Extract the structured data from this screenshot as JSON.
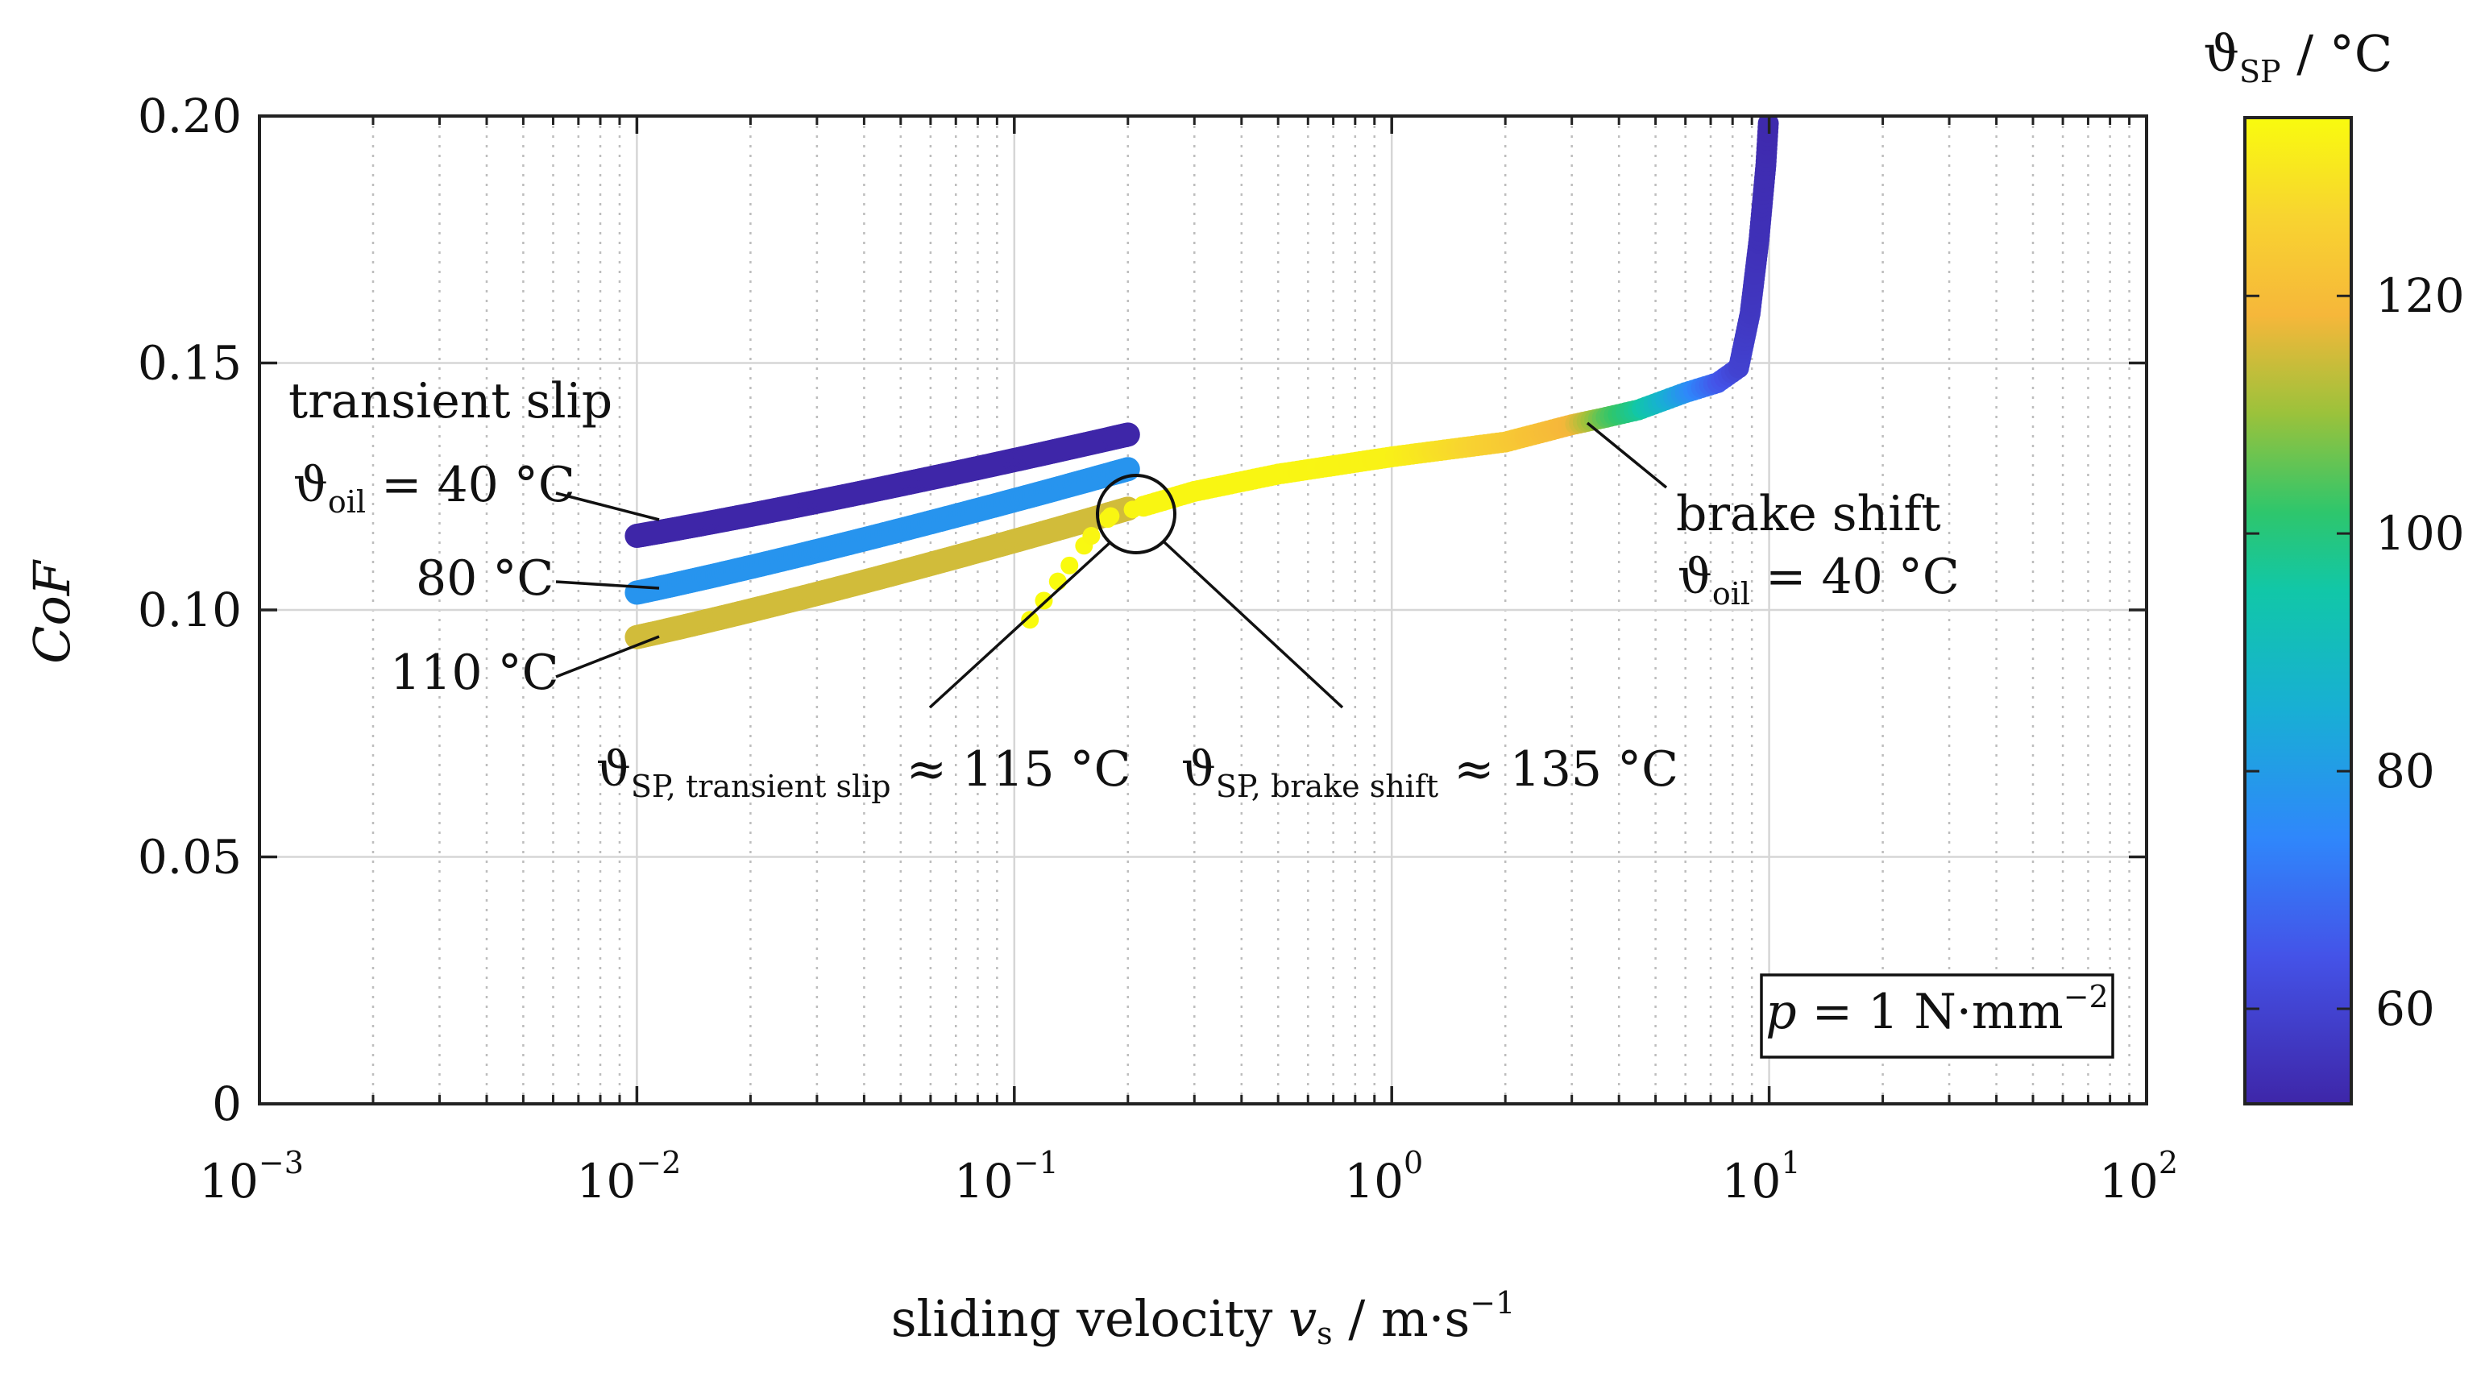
{
  "chart_data": {
    "type": "scatter",
    "x_scale": "log",
    "xlim": [
      0.001,
      100
    ],
    "ylim": [
      0,
      0.2
    ],
    "x_ticks": [
      {
        "base": "10",
        "exp": "−3",
        "value": 0.001
      },
      {
        "base": "10",
        "exp": "−2",
        "value": 0.01
      },
      {
        "base": "10",
        "exp": "−1",
        "value": 0.1
      },
      {
        "base": "10",
        "exp": "0",
        "value": 1
      },
      {
        "base": "10",
        "exp": "1",
        "value": 10
      },
      {
        "base": "10",
        "exp": "2",
        "value": 100
      }
    ],
    "y_ticks": [
      {
        "label": "0",
        "value": 0
      },
      {
        "label": "0.05",
        "value": 0.05
      },
      {
        "label": "0.10",
        "value": 0.1
      },
      {
        "label": "0.15",
        "value": 0.15
      },
      {
        "label": "0.20",
        "value": 0.2
      }
    ],
    "xlabel": {
      "main": "sliding velocity ",
      "var": "v",
      "sub": "s",
      "unit": " / m·s",
      "exp": "−1"
    },
    "ylabel": "CoF",
    "grid": true,
    "colorbar": {
      "label_symbol": "ϑ",
      "label_sub": "SP",
      "label_unit": " / °C",
      "range": [
        52,
        135
      ],
      "ticks": [
        {
          "label": "60",
          "value": 60
        },
        {
          "label": "80",
          "value": 80
        },
        {
          "label": "100",
          "value": 100
        },
        {
          "label": "120",
          "value": 120
        }
      ],
      "stops": [
        {
          "t": 0.0,
          "color": "#3e26a8"
        },
        {
          "t": 0.15,
          "color": "#4453e8"
        },
        {
          "t": 0.27,
          "color": "#2f87fb"
        },
        {
          "t": 0.4,
          "color": "#18afd4"
        },
        {
          "t": 0.52,
          "color": "#11c7a8"
        },
        {
          "t": 0.6,
          "color": "#2ec66c"
        },
        {
          "t": 0.7,
          "color": "#9bc23b"
        },
        {
          "t": 0.8,
          "color": "#f6b73a"
        },
        {
          "t": 0.9,
          "color": "#f8d430"
        },
        {
          "t": 1.0,
          "color": "#f9fb0e"
        }
      ]
    },
    "series": [
      {
        "name": "transient slip ϑoil = 40 °C",
        "x_range": [
          0.01,
          0.2
        ],
        "y_range": [
          0.115,
          0.1355
        ],
        "temp_c": 52
      },
      {
        "name": "transient slip 80 °C",
        "x_range": [
          0.01,
          0.2
        ],
        "y_range": [
          0.1035,
          0.1285
        ],
        "temp_c": 78
      },
      {
        "name": "transient slip 110 °C",
        "x_range": [
          0.01,
          0.2
        ],
        "y_range": [
          0.0945,
          0.1205
        ],
        "temp_c": 115
      },
      {
        "name": "brake shift ϑoil = 40 °C",
        "points": [
          {
            "x": 0.11,
            "y": 0.098,
            "t": 135
          },
          {
            "x": 0.14,
            "y": 0.109,
            "t": 135
          },
          {
            "x": 0.16,
            "y": 0.115,
            "t": 134
          },
          {
            "x": 0.18,
            "y": 0.119,
            "t": 134
          },
          {
            "x": 0.22,
            "y": 0.121,
            "t": 134
          },
          {
            "x": 0.3,
            "y": 0.124,
            "t": 134
          },
          {
            "x": 0.5,
            "y": 0.1275,
            "t": 134
          },
          {
            "x": 1.0,
            "y": 0.131,
            "t": 133
          },
          {
            "x": 2.0,
            "y": 0.134,
            "t": 124
          },
          {
            "x": 3.0,
            "y": 0.1375,
            "t": 118
          },
          {
            "x": 3.7,
            "y": 0.139,
            "t": 105
          },
          {
            "x": 4.5,
            "y": 0.1405,
            "t": 97
          },
          {
            "x": 6.0,
            "y": 0.144,
            "t": 78
          },
          {
            "x": 7.3,
            "y": 0.146,
            "t": 66
          },
          {
            "x": 8.3,
            "y": 0.149,
            "t": 60
          },
          {
            "x": 8.9,
            "y": 0.16,
            "t": 57
          },
          {
            "x": 9.4,
            "y": 0.175,
            "t": 55
          },
          {
            "x": 9.8,
            "y": 0.19,
            "t": 54
          },
          {
            "x": 9.95,
            "y": 0.1985,
            "t": 53
          }
        ]
      }
    ],
    "annotations": {
      "transient_slip_title": "transient slip",
      "transient_slip_40_sym": "ϑ",
      "transient_slip_40_sub": "oil",
      "transient_slip_40_val": " = 40 °C",
      "label_80": "80 °C",
      "label_110": "110 °C",
      "brake_title": "brake shift",
      "brake_sym": "ϑ",
      "brake_sub": "oil",
      "brake_val": " = 40 °C",
      "sp_transient_sym": "ϑ",
      "sp_transient_sub": "SP, transient slip",
      "sp_transient_val": " ≈ 115 °C",
      "sp_brake_sym": "ϑ",
      "sp_brake_sub": "SP, brake shift",
      "sp_brake_val": " ≈ 135 °C",
      "pressure_var": "p",
      "pressure_val": " = 1 N·mm",
      "pressure_exp": "−2"
    }
  }
}
